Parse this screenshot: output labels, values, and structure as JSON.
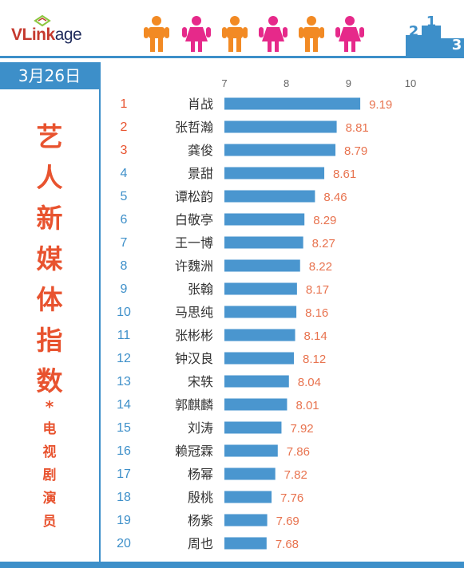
{
  "brand": {
    "logo_red": "VLink",
    "logo_dark": "age"
  },
  "header": {
    "date": "3月26日"
  },
  "title": {
    "main_chars": [
      "艺",
      "人",
      "新",
      "媒",
      "体",
      "指",
      "数"
    ],
    "star": "*",
    "sub_chars": [
      "电",
      "视",
      "剧",
      "演",
      "员"
    ]
  },
  "podium": {
    "first": "1",
    "second": "2",
    "third": "3"
  },
  "colors": {
    "accent": "#3d8fc9",
    "title": "#e8532f",
    "rank_top": "#e8532f",
    "rank_other": "#3d8fc9",
    "value": "#e8734f",
    "bar": "#4a96cf"
  },
  "chart_data": {
    "type": "bar",
    "orientation": "horizontal",
    "xlim": [
      7,
      10
    ],
    "xticks": [
      7,
      8,
      9,
      10
    ],
    "ranks": [
      "1",
      "2",
      "3",
      "4",
      "5",
      "6",
      "7",
      "8",
      "9",
      "10",
      "11",
      "12",
      "13",
      "14",
      "15",
      "16",
      "17",
      "18",
      "19",
      "20"
    ],
    "categories": [
      "肖战",
      "张哲瀚",
      "龚俊",
      "景甜",
      "谭松韵",
      "白敬亭",
      "王一博",
      "许魏洲",
      "张翰",
      "马思纯",
      "张彬彬",
      "钟汉良",
      "宋轶",
      "郭麒麟",
      "刘涛",
      "赖冠霖",
      "杨幂",
      "殷桃",
      "杨紫",
      "周也"
    ],
    "values": [
      9.19,
      8.81,
      8.79,
      8.61,
      8.46,
      8.29,
      8.27,
      8.22,
      8.17,
      8.16,
      8.14,
      8.12,
      8.04,
      8.01,
      7.92,
      7.86,
      7.82,
      7.76,
      7.69,
      7.68
    ],
    "value_labels": [
      "9.19",
      "8.81",
      "8.79",
      "8.61",
      "8.46",
      "8.29",
      "8.27",
      "8.22",
      "8.17",
      "8.16",
      "8.14",
      "8.12",
      "8.04",
      "8.01",
      "7.92",
      "7.86",
      "7.82",
      "7.76",
      "7.69",
      "7.68"
    ]
  }
}
